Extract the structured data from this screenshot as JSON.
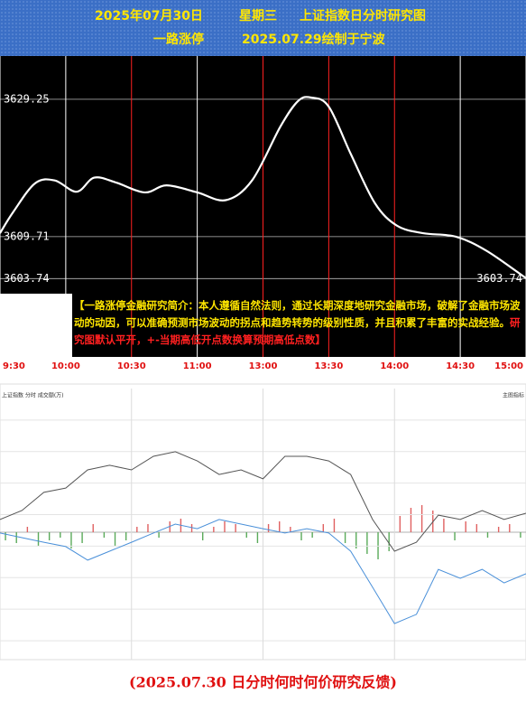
{
  "header": {
    "date": "2025年07月30日",
    "weekday": "星期三",
    "title": "上证指数日分时研究图",
    "author": "一路涨停",
    "made": "2025.07.29绘制于宁波"
  },
  "chart_data": [
    {
      "type": "line",
      "smooth": true,
      "color": "#ffffff",
      "background": "#000000",
      "x": [
        0,
        6,
        16,
        25,
        35,
        43,
        53,
        66,
        76,
        90,
        103,
        115,
        128,
        136,
        142,
        150,
        160,
        171,
        181,
        193,
        208,
        222,
        240
      ],
      "values": [
        3610.2,
        3613.2,
        3617.3,
        3617.7,
        3616.1,
        3618.1,
        3617.4,
        3616.0,
        3617.0,
        3616.0,
        3614.9,
        3617.7,
        3625.4,
        3629.0,
        3629.5,
        3628.2,
        3621.5,
        3614.5,
        3611.3,
        3610.2,
        3609.7,
        3607.7,
        3603.8
      ],
      "xlim": [
        0,
        240
      ],
      "xticks": [
        {
          "value": 0,
          "label": "9:30"
        },
        {
          "value": 30,
          "label": "10:00"
        },
        {
          "value": 60,
          "label": "10:30"
        },
        {
          "value": 90,
          "label": "11:00"
        },
        {
          "value": 120,
          "label": "13:00"
        },
        {
          "value": 150,
          "label": "13:30"
        },
        {
          "value": 180,
          "label": "14:00"
        },
        {
          "value": 210,
          "label": "14:30"
        },
        {
          "value": 240,
          "label": "15:00"
        }
      ],
      "xgrid_colors": [
        "#ffffff",
        "#ffffff",
        "#ff2020",
        "#ffffff",
        "#ff2020",
        "#ff2020",
        "#ff2020",
        "#ffffff",
        "#ffffff"
      ],
      "ylim": [
        3592.6,
        3635.4
      ],
      "yticks": [
        3629.25,
        3609.71,
        3603.74
      ],
      "annotations": [
        "【一路涨停金融研究简介：本人遵循自然法则，通过长期深度地研究金融市场，破解了金融市场波动的动因，可以准确预测市场波动的拐点和趋势转势的级别性质，并且积累了丰富的实战经验。",
        "研究图默认平开，+-当期高低开点数换算预期高低点数】"
      ]
    },
    {
      "type": "line",
      "title": "上证指数 分时 成交额(万)",
      "subtitle": "主图指标",
      "grid": true,
      "x": [
        0,
        10,
        20,
        30,
        40,
        50,
        60,
        70,
        80,
        90,
        100,
        110,
        120,
        130,
        140,
        150,
        160,
        170,
        180,
        190,
        200,
        210,
        220,
        230,
        240
      ],
      "xlim": [
        0,
        240
      ],
      "ylim": [
        0,
        100
      ],
      "series": [
        {
          "color": "#555555",
          "values": [
            51.7,
            55,
            61.7,
            63.3,
            70,
            71.7,
            70,
            75,
            76.7,
            73.3,
            68.3,
            70,
            66.7,
            75,
            75,
            73.3,
            68.3,
            51.7,
            40,
            43.3,
            53.3,
            51.7,
            55,
            51.7,
            54
          ]
        },
        {
          "color": "#4a90d9",
          "values": [
            46.7,
            45,
            43.3,
            41.7,
            36.7,
            40,
            43.3,
            46.7,
            50,
            48.3,
            51.7,
            50,
            48.3,
            46.7,
            48.3,
            46.7,
            40,
            26.7,
            13.3,
            16.7,
            33.3,
            30,
            33.3,
            28.3,
            31.7
          ]
        }
      ]
    },
    {
      "type": "bar",
      "up_color": "#e06060",
      "down_color": "#5aaa5a",
      "xlim": [
        0,
        240
      ],
      "ylim": [
        -47,
        53
      ],
      "x": [
        2.5,
        7.5,
        12.5,
        17.5,
        22.5,
        27.5,
        32.5,
        37.5,
        42.5,
        47.5,
        52.5,
        57.5,
        62.5,
        67.5,
        72.5,
        77.5,
        82.5,
        87.5,
        92.5,
        97.5,
        102.5,
        107.5,
        112.5,
        117.5,
        122.5,
        127.5,
        132.5,
        137.5,
        142.5,
        147.5,
        152.5,
        157.5,
        162.5,
        167.5,
        172.5,
        177.5,
        182.5,
        187.5,
        192.5,
        197.5,
        202.5,
        207.5,
        212.5,
        217.5,
        222.5,
        227.5,
        232.5,
        237.5
      ],
      "values": [
        -3,
        -4,
        2,
        -5,
        -3,
        -2,
        -6,
        -4,
        3,
        -2,
        -5,
        -3,
        2,
        3,
        -2,
        4,
        5,
        3,
        -3,
        2,
        4,
        3,
        -2,
        -4,
        3,
        4,
        2,
        -3,
        -2,
        3,
        5,
        -4,
        -6,
        -8,
        -10,
        -7,
        6,
        9,
        10,
        8,
        5,
        -3,
        4,
        3,
        -2,
        2,
        3,
        -2
      ]
    }
  ],
  "footer": "(2025.07.30 日分时何时何价研究反馈)"
}
